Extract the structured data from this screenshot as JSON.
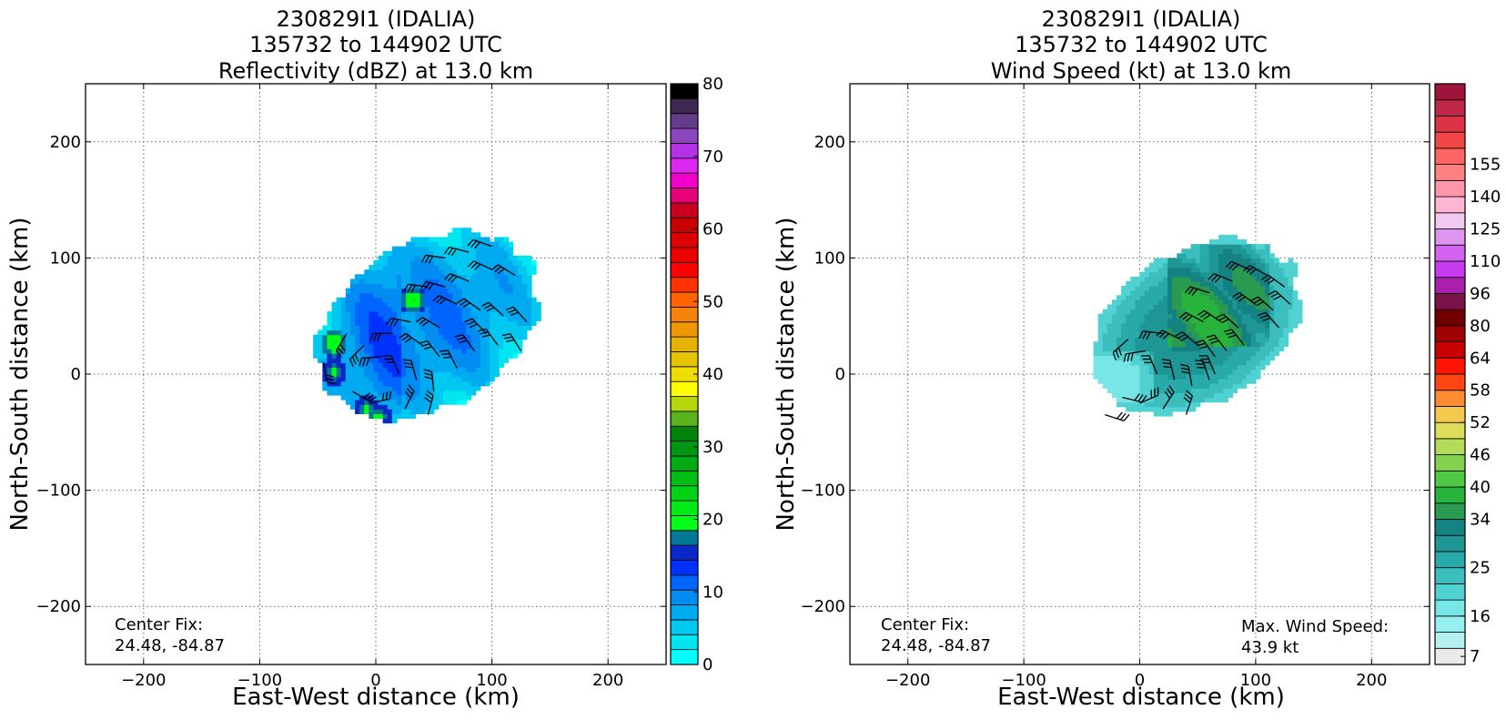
{
  "chart_data": [
    {
      "type": "heatmap",
      "title_lines": [
        "230829I1 (IDALIA)",
        "135732 to 144902 UTC",
        "Reflectivity (dBZ) at 13.0 km"
      ],
      "xlabel": "East-West distance (km)",
      "ylabel": "North-South distance (km)",
      "xlim": [
        -250,
        250
      ],
      "ylim": [
        -250,
        250
      ],
      "xticks": [
        -200,
        -100,
        0,
        100,
        200
      ],
      "yticks": [
        -200,
        -100,
        0,
        100,
        200
      ],
      "xtick_labels": [
        "−200",
        "−100",
        "0",
        "100",
        "200"
      ],
      "ytick_labels": [
        "−200",
        "−100",
        "0",
        "100",
        "200"
      ],
      "grid": true,
      "annotations": {
        "center_fix_label": "Center Fix:",
        "center_fix_value": "24.48, -84.87"
      },
      "colorbar": {
        "min": 0,
        "max": 80,
        "tick_values": [
          0,
          10,
          20,
          30,
          40,
          50,
          60,
          70,
          80
        ],
        "tick_labels": [
          "0",
          "10",
          "20",
          "30",
          "40",
          "50",
          "60",
          "70",
          "80"
        ],
        "colors": [
          "#00ffff",
          "#00e6f0",
          "#00c8f0",
          "#00aaf0",
          "#008cf0",
          "#0064ff",
          "#0032ff",
          "#0a28c8",
          "#007896",
          "#00ff14",
          "#00eb14",
          "#00d214",
          "#00be14",
          "#00aa14",
          "#009614",
          "#00820a",
          "#5ab41e",
          "#b4d60a",
          "#ffff00",
          "#f0dc00",
          "#e6c300",
          "#e6b400",
          "#f09600",
          "#f5820a",
          "#ff6400",
          "#ff3200",
          "#ff0000",
          "#eb0000",
          "#dc0000",
          "#c80000",
          "#c8001e",
          "#e6007a",
          "#f000c8",
          "#dc28f0",
          "#b432e6",
          "#8c46be",
          "#643c8c",
          "#3c2850",
          "#000000"
        ]
      },
      "storm_extent": {
        "x": [
          -58,
          142
        ],
        "y": [
          -50,
          130
        ]
      },
      "high_reflectivity_cores": [
        {
          "x": 30,
          "y": 62,
          "dbz": 22
        },
        {
          "x": -38,
          "y": 25,
          "dbz": 22
        },
        {
          "x": -38,
          "y": 0,
          "dbz": 20
        },
        {
          "x": -10,
          "y": -32,
          "dbz": 20
        },
        {
          "x": 0,
          "y": -38,
          "dbz": 20
        }
      ],
      "wind_barbs": [
        {
          "x": -45,
          "y": 10
        },
        {
          "x": -25,
          "y": 35
        },
        {
          "x": -10,
          "y": 25
        },
        {
          "x": 5,
          "y": 15
        },
        {
          "x": 15,
          "y": 35
        },
        {
          "x": 30,
          "y": 45
        },
        {
          "x": 40,
          "y": 25
        },
        {
          "x": 55,
          "y": 15
        },
        {
          "x": 70,
          "y": 5
        },
        {
          "x": 20,
          "y": 0
        },
        {
          "x": 35,
          "y": -5
        },
        {
          "x": 50,
          "y": -15
        },
        {
          "x": -20,
          "y": -15
        },
        {
          "x": -5,
          "y": -25
        },
        {
          "x": 25,
          "y": -30
        },
        {
          "x": 45,
          "y": -35
        },
        {
          "x": 55,
          "y": 40
        },
        {
          "x": 70,
          "y": 60
        },
        {
          "x": 90,
          "y": 55
        },
        {
          "x": 110,
          "y": 50
        },
        {
          "x": 120,
          "y": 85
        },
        {
          "x": 100,
          "y": 90
        },
        {
          "x": 80,
          "y": 80
        },
        {
          "x": 60,
          "y": 75
        },
        {
          "x": 45,
          "y": 75
        },
        {
          "x": 60,
          "y": 100
        },
        {
          "x": 80,
          "y": 105
        },
        {
          "x": 100,
          "y": 110
        },
        {
          "x": 85,
          "y": 20
        },
        {
          "x": 105,
          "y": 25
        },
        {
          "x": 130,
          "y": 45
        },
        {
          "x": 125,
          "y": 20
        },
        {
          "x": 95,
          "y": 35
        }
      ]
    },
    {
      "type": "heatmap",
      "title_lines": [
        "230829I1 (IDALIA)",
        "135732 to 144902 UTC",
        "Wind Speed (kt) at 13.0 km"
      ],
      "xlabel": "East-West distance (km)",
      "ylabel": "North-South distance (km)",
      "xlim": [
        -250,
        250
      ],
      "ylim": [
        -250,
        250
      ],
      "xticks": [
        -200,
        -100,
        0,
        100,
        200
      ],
      "yticks": [
        -200,
        -100,
        0,
        100,
        200
      ],
      "xtick_labels": [
        "−200",
        "−100",
        "0",
        "100",
        "200"
      ],
      "ytick_labels": [
        "−200",
        "−100",
        "0",
        "100",
        "200"
      ],
      "grid": true,
      "annotations": {
        "center_fix_label": "Center Fix:",
        "center_fix_value": "24.48, -84.87",
        "max_wind_label": "Max. Wind Speed:",
        "max_wind_value": "43.9 kt"
      },
      "colorbar": {
        "min": 4,
        "max": 160,
        "tick_values": [
          7,
          16,
          25,
          34,
          40,
          46,
          52,
          58,
          64,
          80,
          96,
          110,
          125,
          140,
          155
        ],
        "tick_labels": [
          "7",
          "16",
          "25",
          "34",
          "40",
          "46",
          "52",
          "58",
          "64",
          "80",
          "96",
          "110",
          "125",
          "140",
          "155"
        ],
        "bounds": [
          4,
          10,
          13,
          16,
          19,
          22,
          25,
          28,
          31,
          34,
          37,
          40,
          43,
          46,
          49,
          52,
          55,
          58,
          61,
          64,
          72,
          80,
          88,
          96,
          103,
          110,
          118,
          125,
          133,
          140,
          148,
          155,
          160
        ],
        "colors": [
          "#eaeaea",
          "#b4f0f0",
          "#96f0f0",
          "#78e6e6",
          "#50d2d2",
          "#3cbebe",
          "#28aaaa",
          "#1e9696",
          "#148282",
          "#2a9a50",
          "#28b43c",
          "#50c846",
          "#82d250",
          "#b4dc5a",
          "#dcdc5a",
          "#f5c850",
          "#ff8c32",
          "#ff4614",
          "#ff1400",
          "#c80000",
          "#a00000",
          "#700000",
          "#78144a",
          "#aa20aa",
          "#c83cf0",
          "#d264f0",
          "#dc96f0",
          "#f0c8f0",
          "#ffb4d2",
          "#ff96aa",
          "#ff8282",
          "#ff6464",
          "#f04646",
          "#dc3246",
          "#be2846",
          "#a0143c"
        ]
      },
      "storm_extent": {
        "x": [
          -48,
          142
        ],
        "y": [
          -44,
          122
        ]
      },
      "max_wind_contour_region": {
        "x": [
          20,
          110
        ],
        "y": [
          20,
          110
        ]
      },
      "wind_barbs": [
        {
          "x": -10,
          "y": 30
        },
        {
          "x": 5,
          "y": 20
        },
        {
          "x": 20,
          "y": 35
        },
        {
          "x": 35,
          "y": 30
        },
        {
          "x": 50,
          "y": 25
        },
        {
          "x": 65,
          "y": 15
        },
        {
          "x": 15,
          "y": 0
        },
        {
          "x": 30,
          "y": -5
        },
        {
          "x": 45,
          "y": -10
        },
        {
          "x": 60,
          "y": -5
        },
        {
          "x": -15,
          "y": -20
        },
        {
          "x": 0,
          "y": -25
        },
        {
          "x": 20,
          "y": -30
        },
        {
          "x": 40,
          "y": -35
        },
        {
          "x": -30,
          "y": -35
        },
        {
          "x": 70,
          "y": 45
        },
        {
          "x": 85,
          "y": 40
        },
        {
          "x": 100,
          "y": 60
        },
        {
          "x": 115,
          "y": 55
        },
        {
          "x": 125,
          "y": 75
        },
        {
          "x": 110,
          "y": 85
        },
        {
          "x": 95,
          "y": 90
        },
        {
          "x": 80,
          "y": 80
        },
        {
          "x": 60,
          "y": 70
        },
        {
          "x": 75,
          "y": 20
        },
        {
          "x": 90,
          "y": 25
        },
        {
          "x": 120,
          "y": 40
        },
        {
          "x": 130,
          "y": 60
        },
        {
          "x": 55,
          "y": 45
        },
        {
          "x": 65,
          "y": 0
        }
      ]
    }
  ]
}
